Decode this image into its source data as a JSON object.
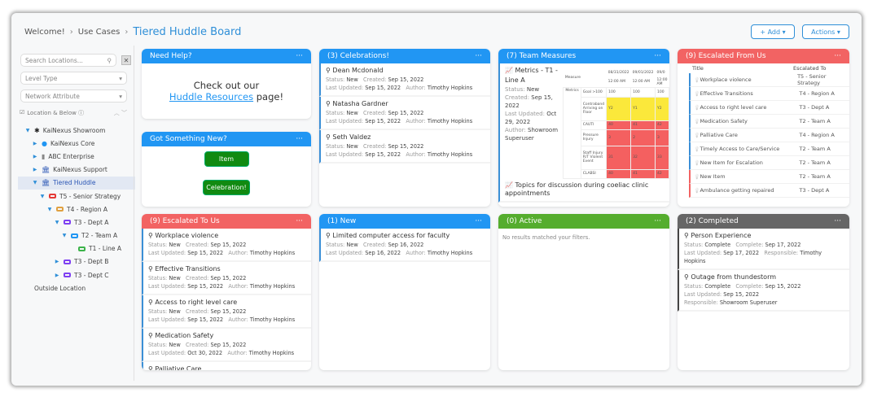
{
  "breadcrumb": {
    "items": [
      "Welcome!",
      "Use Cases"
    ],
    "current": "Tiered Huddle Board"
  },
  "header": {
    "add_label": "+ Add ▾",
    "actions_label": "Actions ▾"
  },
  "sidebar": {
    "search_placeholder": "Search Locations...",
    "level_type": "Level Type",
    "network_attribute": "Network Attribute",
    "scope_label": "Location & Below ⓘ",
    "tree": [
      {
        "label": "KaiNexus Showroom",
        "depth": 0,
        "toggle": "▼",
        "icon": "✱",
        "color": "#222"
      },
      {
        "label": "KaiNexus Core",
        "depth": 1,
        "toggle": "▶",
        "icon": "●",
        "color": "#2196f3"
      },
      {
        "label": "ABC Enterprise",
        "depth": 1,
        "toggle": "▶",
        "icon": "▮",
        "color": "#888"
      },
      {
        "label": "KaiNexus Support",
        "depth": 1,
        "toggle": "▶",
        "icon": "🏛",
        "color": "#2b56b5"
      },
      {
        "label": "Tiered Huddle",
        "depth": 1,
        "toggle": "▼",
        "icon": "🏛",
        "color": "#2b56b5",
        "selected": true
      },
      {
        "label": "T5 - Senior Strategy",
        "depth": 2,
        "toggle": "▼",
        "box": "#e53935"
      },
      {
        "label": "T4 - Region A",
        "depth": 3,
        "toggle": "▼",
        "box": "#e0a040"
      },
      {
        "label": "T3 - Dept A",
        "depth": 4,
        "toggle": "▼",
        "box": "#7e3ff2"
      },
      {
        "label": "T2 - Team A",
        "depth": 5,
        "toggle": "▼",
        "box": "#2196f3"
      },
      {
        "label": "T1 - Line A",
        "depth": 6,
        "toggle": "",
        "box": "#3cb34a"
      },
      {
        "label": "T3 - Dept B",
        "depth": 4,
        "toggle": "▶",
        "box": "#7e3ff2"
      },
      {
        "label": "T3 - Dept C",
        "depth": 4,
        "toggle": "▶",
        "box": "#7e3ff2"
      },
      {
        "label": "Outside Location",
        "depth": 0,
        "toggle": ""
      }
    ]
  },
  "help": {
    "title": "Need Help?",
    "line1": "Check out our",
    "link": "Huddle Resources",
    "line2": " page!"
  },
  "new_panel": {
    "title": "Got Something New?",
    "item": "Item",
    "celebration": "Celebration!"
  },
  "menu_icon": "···",
  "labels": {
    "status": "Status: ",
    "created": "Created: ",
    "updated": "Last Updated: ",
    "author": "Author: ",
    "complete": "Complete: ",
    "responsible": "Responsible: "
  },
  "celebrations": {
    "title": "(3) Celebrations!",
    "items": [
      {
        "title": "Dean Mcdonald",
        "status": "New",
        "created": "Sep 15, 2022",
        "updated": "Sep 15, 2022",
        "author": "Timothy Hopkins"
      },
      {
        "title": "Natasha Gardner",
        "status": "New",
        "created": "Sep 15, 2022",
        "updated": "Sep 15, 2022",
        "author": "Timothy Hopkins"
      },
      {
        "title": "Seth Valdez",
        "status": "New",
        "created": "Sep 15, 2022",
        "updated": "Sep 15, 2022",
        "author": "Timothy Hopkins"
      }
    ]
  },
  "measures": {
    "title": "(7) Team Measures",
    "metric": {
      "title": "Metrics - T1 - Line A",
      "status": "New",
      "created": "Sep 15, 2022",
      "updated": "Oct 29, 2022",
      "author": "Showroom Superuser"
    },
    "table": {
      "measure": "Measure",
      "metrics": "Metrics",
      "dates": [
        "08/31/2022",
        "09/01/2022",
        "09/0"
      ],
      "time": "12:00 AM",
      "rows": [
        {
          "name": "Goal >100",
          "vals": [
            "100",
            "100",
            "100"
          ],
          "c": ""
        },
        {
          "name": "Contraband Arriving on Floor",
          "vals": [
            "Y2",
            "Y1",
            "Y2"
          ],
          "c": "y"
        },
        {
          "name": "CAUTI",
          "vals": [
            "40",
            "41",
            "42"
          ],
          "c": "r"
        },
        {
          "name": "Pressure Injury",
          "vals": [
            "3",
            "2",
            "3"
          ],
          "c": "r"
        },
        {
          "name": "Staff Injury R/T Violent Event",
          "vals": [
            "31",
            "32",
            "33"
          ],
          "c": "r"
        },
        {
          "name": "CLABSI",
          "vals": [
            "40",
            "41",
            "42"
          ],
          "c": "r"
        }
      ]
    },
    "topic": "Topics for discussion during coeliac clinic appointments"
  },
  "escalated_from": {
    "title": "(9) Escalated From Us",
    "col_title": "Title",
    "col_to": "Escalated To",
    "rows": [
      {
        "t": "Workplace violence",
        "to": "T5 - Senior Strategy"
      },
      {
        "t": "Effective Transitions",
        "to": "T4 - Region A"
      },
      {
        "t": "Access to right level care",
        "to": "T3 - Dept A"
      },
      {
        "t": "Medication Safety",
        "to": "T2 - Team A"
      },
      {
        "t": "Palliative Care",
        "to": "T4 - Region A"
      },
      {
        "t": "Timely Access to Care/Service",
        "to": "T2 - Team A"
      },
      {
        "t": "New Item for Escalation",
        "to": "T2 - Team A"
      },
      {
        "t": "New Item",
        "to": "T2 - Team A",
        "red": true
      },
      {
        "t": "Ambulance getting repaired",
        "to": "T3 - Dept A",
        "red": true
      }
    ]
  },
  "escalated_to": {
    "title": "(9) Escalated To Us",
    "items": [
      {
        "title": "Workplace violence",
        "status": "New",
        "created": "Sep 15, 2022",
        "updated": "Sep 15, 2022",
        "author": "Timothy Hopkins"
      },
      {
        "title": "Effective Transitions",
        "status": "New",
        "created": "Sep 15, 2022",
        "updated": "Sep 15, 2022",
        "author": "Timothy Hopkins"
      },
      {
        "title": "Access to right level care",
        "status": "New",
        "created": "Sep 15, 2022",
        "updated": "Sep 15, 2022",
        "author": "Timothy Hopkins"
      },
      {
        "title": "Medication Safety",
        "status": "New",
        "created": "Sep 15, 2022",
        "updated": "Oct 30, 2022",
        "author": "Timothy Hopkins"
      },
      {
        "title": "Palliative Care"
      }
    ]
  },
  "new_items": {
    "title": "(1) New",
    "items": [
      {
        "title": "Limited computer access for faculty",
        "status": "New",
        "created": "Sep 16, 2022",
        "updated": "Sep 16, 2022",
        "author": "Timothy Hopkins"
      }
    ]
  },
  "active": {
    "title": "(0) Active",
    "empty": "No results matched your filters."
  },
  "completed": {
    "title": "(2) Completed",
    "items": [
      {
        "title": "Person Experience",
        "status": "Complete",
        "complete": "Sep 17, 2022",
        "updated": "Sep 17, 2022",
        "responsible": "Timothy Hopkins"
      },
      {
        "title": "Outage from thundestorm",
        "status": "Complete",
        "complete": "Sep 15, 2022",
        "updated": "Sep 15, 2022",
        "responsible": "Showroom Superuser",
        "wrap": true
      }
    ]
  }
}
